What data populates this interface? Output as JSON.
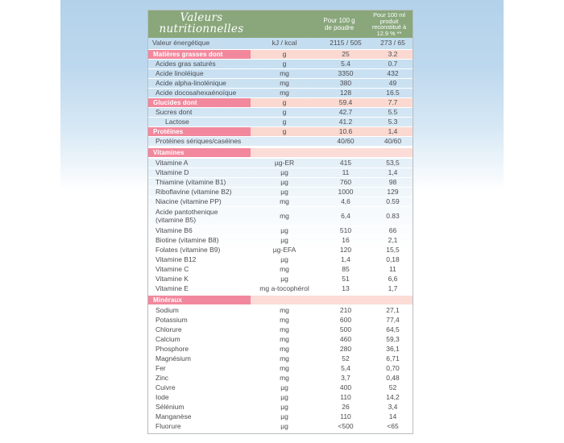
{
  "page": {
    "backdrop_top_color": "#b3d2ea",
    "backdrop_bottom_color": "#ffffff"
  },
  "table": {
    "title": "Valeurs\nnutritionnelles",
    "columns": {
      "per_100g": "Pour 100 g\nde poudre",
      "per_100ml": "Pour 100 ml\nproduit\nreconstitué à\n12.9 % **"
    },
    "colors": {
      "header_green": "#8aa77c",
      "section_chip_pink": "#f2889d",
      "section_row_peach": "#fbd9d0",
      "row_blue_top": "#c3ddf0",
      "text": "#4c4c50",
      "border": "#b8bcc1"
    },
    "rows": [
      {
        "type": "energy",
        "indent": 0,
        "label": "Valeur énergétique",
        "unit": "kJ / kcal",
        "v1": "2115 / 505",
        "v2": "273 / 65"
      },
      {
        "type": "section",
        "label": "Matières grasses dont",
        "unit": "g",
        "v1": "25",
        "v2": "3.2"
      },
      {
        "type": "item",
        "indent": 1,
        "label": "Acides gras saturés",
        "unit": "g",
        "v1": "5.4",
        "v2": "0.7"
      },
      {
        "type": "item",
        "indent": 1,
        "label": "Acide linoléique",
        "unit": "mg",
        "v1": "3350",
        "v2": "432"
      },
      {
        "type": "item",
        "indent": 1,
        "label": "Acide alpha-linolénique",
        "unit": "mg",
        "v1": "380",
        "v2": "49"
      },
      {
        "type": "item",
        "indent": 1,
        "label": "Acide docosahexaénoïque",
        "unit": "mg",
        "v1": "128",
        "v2": "16.5"
      },
      {
        "type": "section",
        "label": "Glucides dont",
        "unit": "g",
        "v1": "59.4",
        "v2": "7.7"
      },
      {
        "type": "item",
        "indent": 1,
        "label": "Sucres dont",
        "unit": "g",
        "v1": "42.7",
        "v2": "5.5"
      },
      {
        "type": "item",
        "indent": 2,
        "label": "Lactose",
        "unit": "g",
        "v1": "41.2",
        "v2": "5.3"
      },
      {
        "type": "section",
        "label": "Protéines",
        "unit": "g",
        "v1": "10.6",
        "v2": "1,4"
      },
      {
        "type": "item",
        "indent": 1,
        "label": "Protéines sériques/caséines",
        "unit": "",
        "v1": "40/60",
        "v2": "40/60"
      },
      {
        "type": "gapsection",
        "label": "Vitamines",
        "unit": "",
        "v1": "",
        "v2": ""
      },
      {
        "type": "item",
        "indent": 1,
        "label": "Vitamine A",
        "unit": "µg-ER",
        "v1": "415",
        "v2": "53,5"
      },
      {
        "type": "item",
        "indent": 1,
        "label": "Vitamine D",
        "unit": "µg",
        "v1": "11",
        "v2": "1,4"
      },
      {
        "type": "item",
        "indent": 1,
        "label": "Thiamine (vitamine B1)",
        "unit": "µg",
        "v1": "760",
        "v2": "98"
      },
      {
        "type": "item",
        "indent": 1,
        "label": "Riboflavine (vitamine B2)",
        "unit": "µg",
        "v1": "1000",
        "v2": "129"
      },
      {
        "type": "item",
        "indent": 1,
        "label": "Niacine (vitamine PP)",
        "unit": "mg",
        "v1": "4,6",
        "v2": "0.59"
      },
      {
        "type": "item",
        "indent": 1,
        "tall": true,
        "label": "Acide pantothenique\n(vitamine B5)",
        "unit": "mg",
        "v1": "6,4",
        "v2": "0.83"
      },
      {
        "type": "item",
        "indent": 1,
        "label": "Vitamine B6",
        "unit": "µg",
        "v1": "510",
        "v2": "66"
      },
      {
        "type": "item",
        "indent": 1,
        "label": "Biotine (vitamine B8)",
        "unit": "µg",
        "v1": "16",
        "v2": "2,1"
      },
      {
        "type": "item",
        "indent": 1,
        "label": "Folates (vitamine B9)",
        "unit": "µg-EFA",
        "v1": "120",
        "v2": "15,5"
      },
      {
        "type": "item",
        "indent": 1,
        "label": "Vitamine B12",
        "unit": "µg",
        "v1": "1,4",
        "v2": "0,18"
      },
      {
        "type": "item",
        "indent": 1,
        "label": "Vitamine C",
        "unit": "mg",
        "v1": "85",
        "v2": "11"
      },
      {
        "type": "item",
        "indent": 1,
        "label": "Vitamine K",
        "unit": "µg",
        "v1": "51",
        "v2": "6,6"
      },
      {
        "type": "item",
        "indent": 1,
        "label": "Vitamine E",
        "unit": "mg a-tocophérol",
        "v1": "13",
        "v2": "1,7"
      },
      {
        "type": "gapsection",
        "label": "Minéraux",
        "unit": "",
        "v1": "",
        "v2": ""
      },
      {
        "type": "item",
        "indent": 1,
        "label": "Sodium",
        "unit": "mg",
        "v1": "210",
        "v2": "27,1"
      },
      {
        "type": "item",
        "indent": 1,
        "label": "Potassium",
        "unit": "mg",
        "v1": "600",
        "v2": "77,4"
      },
      {
        "type": "item",
        "indent": 1,
        "label": "Chlorure",
        "unit": "mg",
        "v1": "500",
        "v2": "64,5"
      },
      {
        "type": "item",
        "indent": 1,
        "label": "Calcium",
        "unit": "mg",
        "v1": "460",
        "v2": "59,3"
      },
      {
        "type": "item",
        "indent": 1,
        "label": "Phosphore",
        "unit": "mg",
        "v1": "280",
        "v2": "36,1"
      },
      {
        "type": "item",
        "indent": 1,
        "label": "Magnésium",
        "unit": "mg",
        "v1": "52",
        "v2": "6,71"
      },
      {
        "type": "item",
        "indent": 1,
        "label": "Fer",
        "unit": "mg",
        "v1": "5,4",
        "v2": "0,70"
      },
      {
        "type": "item",
        "indent": 1,
        "label": "Zinc",
        "unit": "mg",
        "v1": "3,7",
        "v2": "0,48"
      },
      {
        "type": "item",
        "indent": 1,
        "label": "Cuivre",
        "unit": "µg",
        "v1": "400",
        "v2": "52"
      },
      {
        "type": "item",
        "indent": 1,
        "label": "Iode",
        "unit": "µg",
        "v1": "110",
        "v2": "14,2"
      },
      {
        "type": "item",
        "indent": 1,
        "label": "Sélénium",
        "unit": "µg",
        "v1": "26",
        "v2": "3,4"
      },
      {
        "type": "item",
        "indent": 1,
        "label": "Manganèse",
        "unit": "µg",
        "v1": "110",
        "v2": "14"
      },
      {
        "type": "item",
        "indent": 1,
        "label": "Fluorure",
        "unit": "µg",
        "v1": "<500",
        "v2": "<65"
      }
    ]
  }
}
